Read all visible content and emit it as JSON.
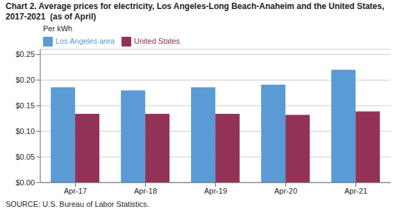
{
  "chart_data": {
    "type": "bar",
    "title": "Chart 2. Average prices for electricity, Los Angeles-Long Beach-Anaheim and the United States, 2017-2021  (as of April)",
    "ylabel": "Per kWh",
    "source": "SOURCE: U.S. Bureau of Labor Statistics.",
    "categories": [
      "Apr-17",
      "Apr-18",
      "Apr-19",
      "Apr-20",
      "Apr-21"
    ],
    "series": [
      {
        "name": "Los Angeles area",
        "color": "#5B9BD5",
        "values": [
          0.186,
          0.18,
          0.186,
          0.191,
          0.22
        ]
      },
      {
        "name": "United States",
        "color": "#943157",
        "values": [
          0.134,
          0.134,
          0.134,
          0.132,
          0.139
        ]
      }
    ],
    "ylim": [
      0.0,
      0.26
    ],
    "yticks": [
      {
        "value": 0.0,
        "label": "$0.00"
      },
      {
        "value": 0.05,
        "label": "$0.05"
      },
      {
        "value": 0.1,
        "label": "$0.10"
      },
      {
        "value": 0.15,
        "label": "$0.15"
      },
      {
        "value": 0.2,
        "label": "$0.20"
      },
      {
        "value": 0.25,
        "label": "$0.25"
      }
    ],
    "grid": true,
    "legend": "upper left"
  }
}
